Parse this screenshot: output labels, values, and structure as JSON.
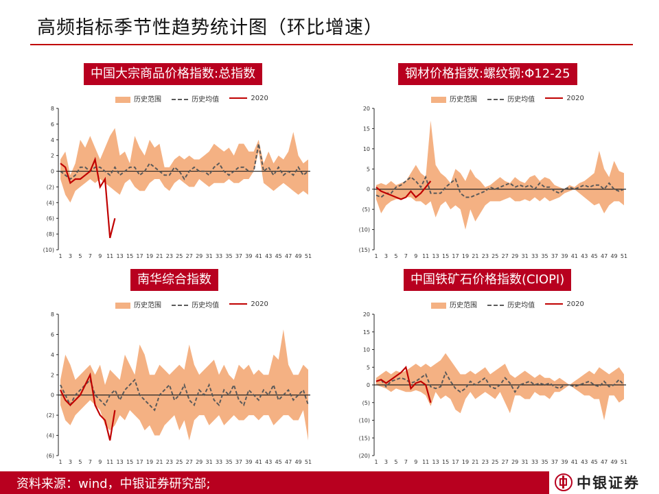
{
  "page": {
    "title": "高频指标季节性趋势统计图（环比增速）",
    "source": "资料来源：wind，中银证券研究部;",
    "brand": "中银证券"
  },
  "legend": {
    "band": "历史范围",
    "mean": "历史均值",
    "current": "2020"
  },
  "colors": {
    "accent": "#b8001f",
    "band": "#f4b183",
    "mean": "#595959",
    "current": "#c00000"
  },
  "chart_data": [
    {
      "type": "area",
      "title": "中国大宗商品价格指数:总指数",
      "series": [
        {
          "name": "历史范围",
          "kind": "band",
          "upper": [
            1.5,
            2.5,
            -0.5,
            1,
            4,
            3,
            4.5,
            3,
            1.5,
            3,
            4.5,
            5.5,
            2,
            2.5,
            1,
            4.5,
            3,
            2,
            4,
            3,
            3.5,
            0.5,
            0.5,
            1.5,
            2,
            1.5,
            2,
            1.5,
            1.5,
            2,
            2.5,
            3.5,
            3,
            2.5,
            3,
            2,
            3.5,
            3.5,
            2.5,
            2.5,
            4,
            1,
            2.5,
            1,
            2,
            1.5,
            2.5,
            5,
            2,
            1,
            1.5
          ],
          "lower": [
            -1,
            -3,
            -4,
            -2.5,
            -2,
            -1.5,
            -1,
            -1.5,
            -1,
            -1.5,
            -2,
            -2.5,
            -3,
            -1.5,
            -1,
            -2,
            -2.5,
            -2.5,
            -1.5,
            -1,
            -1,
            -2,
            -2.5,
            -1.5,
            -1,
            -1.5,
            -2,
            -2,
            -1,
            -1.5,
            -2,
            -1.5,
            -1.5,
            -1.5,
            -1,
            -1.5,
            -1.5,
            -1,
            -1,
            0,
            2.5,
            -1.5,
            -2,
            -2.5,
            -2,
            -1.5,
            -2,
            -2.5,
            -3,
            -2.5,
            -3
          ]
        },
        {
          "name": "历史均值",
          "kind": "line",
          "values": [
            0,
            -0.5,
            -1,
            -0.5,
            0.5,
            0.5,
            0,
            0.5,
            0.5,
            0,
            -0.5,
            0.5,
            -0.5,
            0,
            0.5,
            0.5,
            -0.5,
            0,
            1,
            0.5,
            0,
            -0.5,
            -0.5,
            0.5,
            0,
            -1,
            0,
            0.5,
            0,
            0,
            -0.5,
            0.5,
            1,
            0,
            -0.5,
            0,
            0.5,
            0.5,
            0,
            0,
            3.5,
            0,
            0.5,
            -0.5,
            0.5,
            -0.5,
            0,
            -0.5,
            0.5,
            -0.5,
            0
          ]
        },
        {
          "name": "2020",
          "kind": "line",
          "values": [
            1,
            0.5,
            -1.5,
            -1,
            -1,
            -0.5,
            0,
            1.5,
            -2,
            -1,
            -8.5,
            -6
          ]
        }
      ],
      "x_ticks": [
        "1",
        "3",
        "5",
        "7",
        "9",
        "11",
        "13",
        "15",
        "17",
        "19",
        "21",
        "23",
        "25",
        "27",
        "29",
        "31",
        "33",
        "35",
        "37",
        "39",
        "41",
        "43",
        "45",
        "47",
        "49",
        "51"
      ],
      "y_ticks": [
        "8",
        "6",
        "4",
        "2",
        "0",
        "(2)",
        "(4)",
        "(6)",
        "(8)",
        "(10)"
      ],
      "ylim": [
        -10,
        8
      ]
    },
    {
      "type": "area",
      "title": "钢材价格指数:螺纹钢:Φ12-25",
      "series": [
        {
          "name": "历史范围",
          "kind": "band",
          "upper": [
            1,
            1.5,
            1,
            2,
            1,
            1.5,
            2,
            4,
            6,
            4,
            3,
            17,
            6,
            4,
            3,
            1.5,
            5,
            4,
            2,
            5,
            3,
            2,
            0.5,
            1,
            2,
            3,
            2,
            1.5,
            3,
            2,
            1.5,
            3,
            3.5,
            2,
            3,
            2.5,
            1,
            0.5,
            0,
            1,
            0.5,
            1.5,
            2,
            3,
            4,
            9.5,
            5,
            3,
            7,
            4.5,
            4
          ],
          "lower": [
            -2.5,
            -6,
            -4,
            -3,
            -2.5,
            -2.5,
            -2,
            -2,
            -3,
            -3,
            -4,
            -3,
            -7,
            -4,
            -3,
            -5,
            -4,
            -5,
            -10,
            -5,
            -8,
            -6,
            -4,
            -3,
            -3,
            -3,
            -2.5,
            -2,
            -3,
            -3,
            -2.5,
            -3,
            -2,
            -3,
            -2,
            -3,
            -2.5,
            -2,
            -1,
            -0.5,
            0,
            -1,
            -2,
            -3,
            -4,
            -3.5,
            -6,
            -4,
            -3,
            -3,
            -4
          ]
        },
        {
          "name": "历史均值",
          "kind": "line",
          "values": [
            -1.5,
            -2,
            -1,
            -1,
            0.5,
            1,
            2,
            3,
            2,
            0.5,
            3,
            -1,
            -1,
            -1,
            0.5,
            1.5,
            2.5,
            -1,
            -2,
            -2,
            -1.5,
            -1,
            -0.5,
            0.5,
            0,
            0.5,
            1,
            1.5,
            0.5,
            1,
            0.5,
            1,
            0,
            1.5,
            0.5,
            0.5,
            -0.5,
            -1,
            0,
            0.5,
            0,
            0.5,
            1,
            0.5,
            1,
            1,
            0,
            1.5,
            0,
            -0.5,
            0
          ]
        },
        {
          "name": "2020",
          "kind": "line",
          "values": [
            0.5,
            -0.5,
            -1,
            -1.5,
            -2,
            -2.5,
            -2,
            -0.5,
            -2,
            -1,
            0.5,
            2
          ]
        }
      ],
      "x_ticks": [
        "1",
        "3",
        "5",
        "7",
        "9",
        "11",
        "13",
        "15",
        "17",
        "19",
        "21",
        "23",
        "25",
        "27",
        "29",
        "31",
        "33",
        "35",
        "37",
        "39",
        "41",
        "43",
        "45",
        "47",
        "49",
        "51"
      ],
      "y_ticks": [
        "20",
        "15",
        "10",
        "5",
        "0",
        "(5)",
        "(10)",
        "(15)"
      ],
      "ylim": [
        -15,
        20
      ]
    },
    {
      "type": "area",
      "title": "南华综合指数",
      "series": [
        {
          "name": "历史范围",
          "kind": "band",
          "upper": [
            1.5,
            4,
            3,
            1.5,
            2,
            2.5,
            3,
            2,
            3,
            1,
            2.5,
            2,
            1.5,
            4,
            3,
            2,
            5,
            4,
            2,
            2,
            3,
            2.5,
            2,
            2.5,
            3,
            2.5,
            5,
            3,
            2,
            2.5,
            3,
            3.5,
            2,
            3,
            2,
            1.5,
            3,
            2.5,
            3,
            2,
            2.5,
            2,
            2,
            4,
            3.5,
            6.5,
            3,
            2,
            2,
            3,
            2.5
          ],
          "lower": [
            -1,
            -2.5,
            -3,
            -2,
            -1.5,
            -1,
            -0.5,
            -1,
            -1.5,
            -3,
            -3.5,
            -3,
            -2,
            -2.5,
            -1.5,
            -2,
            -2.5,
            -3.5,
            -3,
            -4,
            -4,
            -3,
            -2.5,
            -2,
            -3.5,
            -2.5,
            -4.5,
            -2.5,
            -2,
            -2,
            -3,
            -2.5,
            -2,
            -3,
            -2.5,
            -2,
            -2.5,
            -2.5,
            -2,
            -2,
            -2.5,
            -2,
            -2,
            -3,
            -2.5,
            -2,
            -2,
            -2.5,
            -2.5,
            -1.5,
            -4.5
          ]
        },
        {
          "name": "历史均值",
          "kind": "line",
          "values": [
            1,
            0,
            -1,
            0,
            0.5,
            1,
            1.5,
            0,
            -0.5,
            -1,
            0,
            0.5,
            -0.5,
            0.5,
            1,
            1.5,
            0,
            -0.5,
            -1,
            -1.5,
            0,
            0.5,
            1,
            -0.5,
            0,
            1,
            -0.5,
            -1,
            0.5,
            0,
            1,
            -0.5,
            -1,
            0.5,
            0,
            1,
            -0.5,
            -1,
            0.5,
            0,
            -0.5,
            0.5,
            0,
            1,
            -0.5,
            0,
            0.5,
            -0.5,
            0,
            0.5,
            -1
          ]
        },
        {
          "name": "2020",
          "kind": "line",
          "values": [
            0.5,
            -0.5,
            -1,
            -0.5,
            0,
            1,
            2,
            -1,
            -2,
            -2.5,
            -4.5,
            -1.5
          ]
        }
      ],
      "x_ticks": [
        "1",
        "3",
        "5",
        "7",
        "9",
        "11",
        "13",
        "15",
        "17",
        "19",
        "21",
        "23",
        "25",
        "27",
        "29",
        "31",
        "33",
        "35",
        "37",
        "39",
        "41",
        "43",
        "45",
        "47",
        "49",
        "51"
      ],
      "y_ticks": [
        "8",
        "6",
        "4",
        "2",
        "0",
        "(2)",
        "(4)",
        "(6)"
      ],
      "ylim": [
        -6,
        8
      ]
    },
    {
      "type": "area",
      "title": "中国铁矿石价格指数(CIOPI)",
      "series": [
        {
          "name": "历史范围",
          "kind": "band",
          "upper": [
            2,
            3,
            4,
            3,
            4,
            3.5,
            4,
            5,
            6,
            5,
            6,
            5,
            6,
            7,
            9,
            7,
            5,
            3,
            3,
            4,
            3,
            4,
            5,
            3,
            4,
            5,
            6,
            3,
            2,
            3,
            4,
            3,
            2,
            3,
            2,
            2,
            1,
            2,
            1,
            0,
            1,
            2,
            3,
            4,
            3,
            5,
            4,
            3,
            4,
            5,
            3
          ],
          "lower": [
            0,
            -0.5,
            -1,
            -2,
            -1,
            -1.5,
            -2,
            -2,
            -1.5,
            -2,
            -3,
            -6,
            -2,
            -4,
            -3,
            -4,
            -7,
            -8,
            -4,
            -2,
            -4,
            -3,
            -2,
            -3,
            -4,
            -2,
            -5,
            -8,
            -3,
            -3,
            -4,
            -4,
            -2,
            -3,
            -3,
            -4,
            -2,
            -2,
            -1,
            0,
            -1,
            -2,
            -3,
            -3,
            -4,
            -4,
            -10,
            -3,
            -3,
            -5,
            -4
          ]
        },
        {
          "name": "历史均值",
          "kind": "line",
          "values": [
            1,
            1.5,
            -0.5,
            1,
            1.5,
            2,
            1.5,
            0.5,
            1,
            2,
            3,
            -0.5,
            -1,
            -0.5,
            3.5,
            1,
            -1,
            -2,
            -1,
            1,
            0,
            1,
            2,
            -0.5,
            -1,
            0,
            2,
            0.5,
            -2,
            0,
            0.5,
            1,
            0,
            0.5,
            0,
            0.5,
            -0.5,
            -1,
            0,
            0,
            -0.5,
            0,
            0.5,
            1,
            0,
            -0.5,
            1,
            -0.5,
            0,
            1.5,
            0
          ]
        },
        {
          "name": "2020",
          "kind": "line",
          "values": [
            1,
            1.5,
            0.5,
            1.5,
            2.5,
            3.5,
            5,
            -1,
            0.5,
            1,
            0,
            -5
          ]
        }
      ],
      "x_ticks": [
        "1",
        "3",
        "5",
        "7",
        "9",
        "11",
        "13",
        "15",
        "17",
        "19",
        "21",
        "23",
        "25",
        "27",
        "29",
        "31",
        "33",
        "35",
        "37",
        "39",
        "41",
        "43",
        "45",
        "47",
        "49",
        "51"
      ],
      "y_ticks": [
        "20",
        "15",
        "10",
        "5",
        "0",
        "(5)",
        "(10)",
        "(15)",
        "(20)"
      ],
      "ylim": [
        -20,
        20
      ]
    }
  ]
}
